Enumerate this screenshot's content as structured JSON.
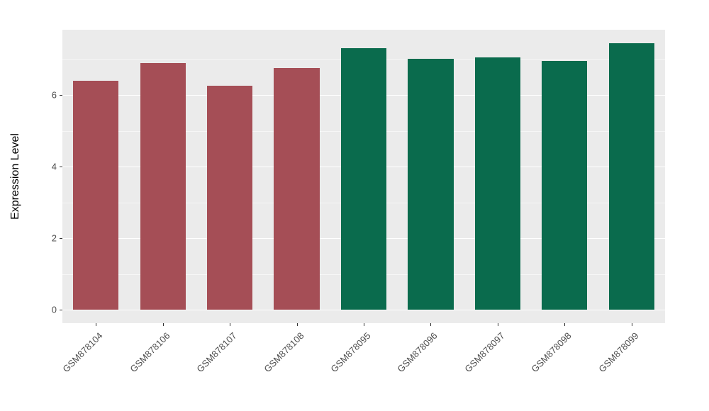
{
  "chart_data": {
    "type": "bar",
    "title": "",
    "xlabel": "",
    "ylabel": "Expression Level",
    "categories": [
      "GSM878104",
      "GSM878106",
      "GSM878107",
      "GSM878108",
      "GSM878095",
      "GSM878096",
      "GSM878097",
      "GSM878098",
      "GSM878099"
    ],
    "values": [
      6.4,
      6.9,
      6.25,
      6.75,
      7.3,
      7.0,
      7.05,
      6.95,
      7.45
    ],
    "bar_colors": [
      "#A54E56",
      "#A54E56",
      "#A54E56",
      "#A54E56",
      "#0A6B4D",
      "#0A6B4D",
      "#0A6B4D",
      "#0A6B4D",
      "#0A6B4D"
    ],
    "groups": [
      {
        "name": "maroon-group",
        "color": "#A54E56",
        "categories": [
          "GSM878104",
          "GSM878106",
          "GSM878107",
          "GSM878108"
        ]
      },
      {
        "name": "green-group",
        "color": "#0A6B4D",
        "categories": [
          "GSM878095",
          "GSM878096",
          "GSM878097",
          "GSM878098",
          "GSM878099"
        ]
      }
    ],
    "ylim": [
      -0.37,
      7.82
    ],
    "yticks": [
      0,
      2,
      4,
      6
    ],
    "yticks_minor": [
      1,
      3,
      5,
      7
    ],
    "grid": true,
    "legend": "none",
    "panel_background": "#EBEBEB",
    "gridline_color": "#FFFFFF",
    "tick_label_color": "#4D4D4D",
    "axis_title_color": "#000000"
  }
}
